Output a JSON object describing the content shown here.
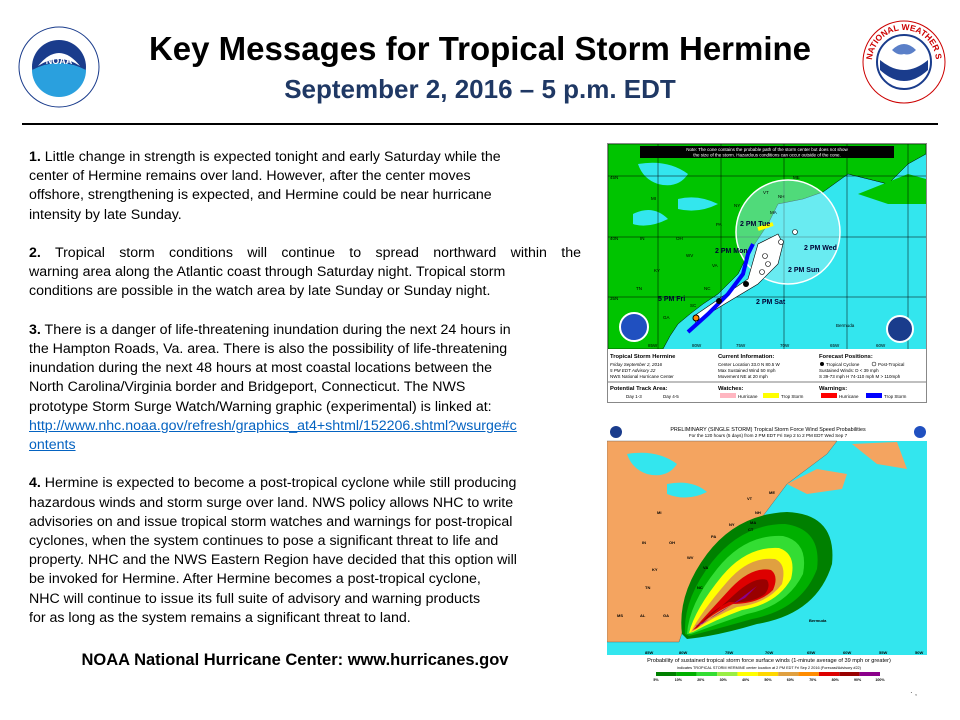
{
  "header": {
    "title": "Key Messages for Tropical Storm Hermine",
    "subtitle": "September 2, 2016 –  5 p.m. EDT",
    "left_logo": "NOAA",
    "right_logo": "NATIONAL WEATHER SERVICE"
  },
  "messages": [
    {
      "num": "1.",
      "lines": [
        "Little change in strength is expected tonight and early Saturday while the",
        "center of Hermine remains over land.  However, after the center moves",
        "offshore, strengthening is expected, and Hermine could be near hurricane",
        "intensity by late Sunday."
      ]
    },
    {
      "num": "2.",
      "lines": [
        "Tropical storm conditions will continue to spread northward within the",
        "warning area along the Atlantic coast through Saturday night.  Tropical storm",
        "conditions are possible in the watch area by late Sunday or Sunday night."
      ]
    },
    {
      "num": "3.",
      "lines": [
        "There is a danger of life-threatening inundation during the next 24 hours in",
        "the Hampton Roads, Va. area. There is also the possibility of life-threatening",
        "inundation during the next 48 hours at most coastal locations between the",
        "North Carolina/Virginia border and Bridgeport, Connecticut.  The NWS",
        "prototype Storm Surge Watch/Warning  graphic (experimental) is linked at:"
      ],
      "link_lines": [
        "http://www.nhc.noaa.gov/refresh/graphics_at4+shtml/152206.shtml?wsurge#c",
        "ontents"
      ]
    },
    {
      "num": "4.",
      "lines": [
        "Hermine is expected to become a post-tropical cyclone while still producing",
        "hazardous winds and storm surge over land.  NWS policy allows NHC to write",
        "advisories on and issue tropical storm watches and warnings for post-tropical",
        "cyclones, when the system continues to pose a significant threat to life and",
        "property. NHC and the NWS Eastern Region have decided that this option will",
        "be invoked for Hermine.  After Hermine becomes a post-tropical cyclone,",
        "NHC will continue to issue its full suite of advisory and warning products",
        "for as long as the system remains a significant threat to land."
      ]
    }
  ],
  "footer": "NOAA National Hurricane Center: www.hurricanes.gov",
  "cone_map": {
    "note": [
      "Note: The cone contains the probable path of the storm center but does not show",
      "the size of the storm. Hazardous conditions can occur outside of the cone."
    ],
    "positions": [
      "2 PM Tue",
      "2 PM Mon",
      "5 PM Fri",
      "2 PM Wed",
      "2 PM Sun",
      "2 PM Sat"
    ],
    "states": [
      "NY",
      "PA",
      "OH",
      "IN",
      "WV",
      "VA",
      "KY",
      "TN",
      "NC",
      "SC",
      "GA",
      "MI",
      "VT",
      "NH",
      "ME",
      "MA"
    ],
    "lat_labels": [
      "45N",
      "40N",
      "35N"
    ],
    "lon_labels": [
      "85W",
      "80W",
      "75W",
      "70W",
      "65W",
      "60W"
    ],
    "bermuda": "Bermuda",
    "storm_name": "Tropical Storm Hermine",
    "date": "Friday  September 2, 2016",
    "advisory": "5 PM EDT Advisory 22",
    "center": "NWS National Hurricane Center",
    "current_title": "Current Information:",
    "current_lines": [
      "Center Location 33.0 N  80.5 W",
      "Max Sustained Wind  50 mph",
      "Movement NE at  20 mph"
    ],
    "forecast_title": "Forecast Positions:",
    "forecast_tc": "Tropical Cyclone",
    "forecast_pt": "Post-Tropical",
    "sustained": "Sustained Winds:      D  < 39 mph",
    "sustained2": "S  39-73 mph  H  74-110 mph  M  > 110mph",
    "track_title": "Potential Track Area:",
    "day13": "Day 1-3",
    "day45": "Day 4-5",
    "watches_title": "Watches:",
    "warnings_title": "Warnings:",
    "hurricane": "Hurricane",
    "trop_storm": "Trop Storm",
    "colors": {
      "land": "#00c400",
      "water": "#33e6ee",
      "ts_warning": "#0000ff",
      "ts_watch": "#ffff00",
      "hurr_warning": "#ff0000",
      "hurr_watch": "#ffb6c1"
    }
  },
  "prob_map": {
    "title": "PRELIMINARY (SINGLE STORM) Tropical Storm Force Wind Speed Probabilities",
    "subtitle": "For the 120 hours (5 days) from 2 PM EDT Fri Sep 2 to 2 PM EDT Wed Sep 7",
    "states": [
      "MI",
      "IN",
      "OH",
      "WV",
      "VA",
      "KY",
      "TN",
      "NC",
      "MS",
      "AL",
      "GA",
      "PA",
      "NY",
      "VT",
      "NH",
      "ME",
      "MA",
      "CT"
    ],
    "bermuda": "Bermuda",
    "lon_labels": [
      "85W",
      "80W",
      "75W",
      "70W",
      "65W",
      "60W",
      "55W",
      "50W"
    ],
    "caption": "Probability of sustained tropical storm force surface winds (1-minute average of 39 mph or greater)",
    "indicator": "indicates TROPICAL STORM HERMINE center location at 2 PM EDT Fri Sep 2 2016 (Forecast/Advisory #22)",
    "scale_labels": [
      "5%",
      "10%",
      "20%",
      "30%",
      "40%",
      "50%",
      "60%",
      "70%",
      "80%",
      "90%",
      "100%"
    ],
    "scale_colors": [
      "#008000",
      "#00b000",
      "#33dd33",
      "#99ee44",
      "#ffff00",
      "#ffd700",
      "#e0a040",
      "#ff8c00",
      "#dd0000",
      "#990000",
      "#8b008b"
    ]
  }
}
